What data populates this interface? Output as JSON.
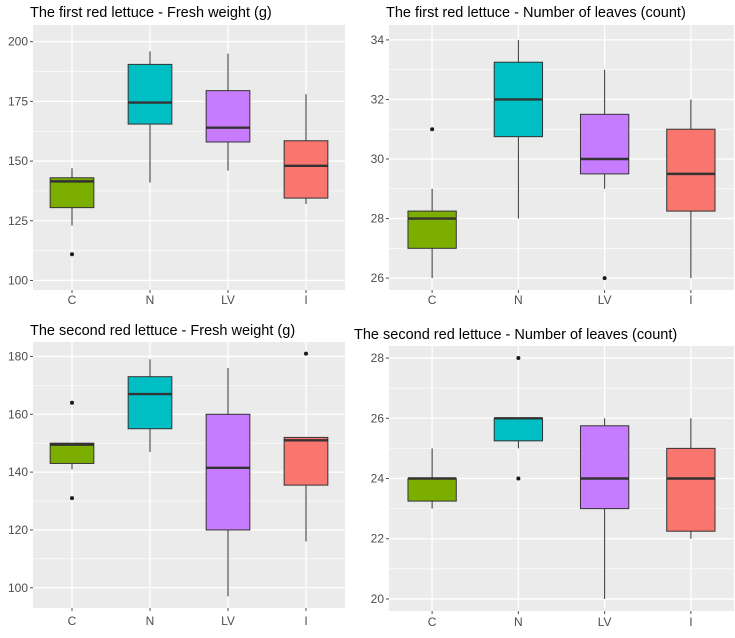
{
  "colors": {
    "panel_bg": "#ebebeb",
    "grid": "#ffffff",
    "median": "#333333",
    "whisker": "#333333",
    "box_stroke": "#333333",
    "groups": {
      "C": "#7cae00",
      "N": "#00bfc4",
      "LV": "#c77cff",
      "I": "#f8766d"
    }
  },
  "chart_data": [
    {
      "type": "box",
      "title": "The first red lettuce - Fresh weight (g)",
      "categories": [
        "C",
        "N",
        "LV",
        "I"
      ],
      "ylim": [
        96,
        207
      ],
      "yticks": [
        100,
        125,
        150,
        175,
        200
      ],
      "minor_yticks": [
        112.5,
        137.5,
        162.5,
        187.5
      ],
      "boxes": [
        {
          "cat": "C",
          "min": 123,
          "q1": 130.5,
          "median": 141.5,
          "q3": 143,
          "max": 147,
          "outliers": [
            111
          ]
        },
        {
          "cat": "N",
          "min": 141,
          "q1": 165.5,
          "median": 174.5,
          "q3": 190.5,
          "max": 196,
          "outliers": []
        },
        {
          "cat": "LV",
          "min": 146,
          "q1": 158,
          "median": 164,
          "q3": 179.5,
          "max": 195,
          "outliers": []
        },
        {
          "cat": "I",
          "min": 132,
          "q1": 134.5,
          "median": 148,
          "q3": 158.5,
          "max": 178,
          "outliers": []
        }
      ]
    },
    {
      "type": "box",
      "title": "The first red lettuce - Number of leaves (count)",
      "categories": [
        "C",
        "N",
        "LV",
        "I"
      ],
      "ylim": [
        25.6,
        34.5
      ],
      "yticks": [
        26,
        28,
        30,
        32,
        34
      ],
      "minor_yticks": [
        27,
        29,
        31,
        33
      ],
      "boxes": [
        {
          "cat": "C",
          "min": 26,
          "q1": 27,
          "median": 28,
          "q3": 28.25,
          "max": 29,
          "outliers": [
            31
          ]
        },
        {
          "cat": "N",
          "min": 28,
          "q1": 30.75,
          "median": 32,
          "q3": 33.25,
          "max": 34,
          "outliers": []
        },
        {
          "cat": "LV",
          "min": 29,
          "q1": 29.5,
          "median": 30,
          "q3": 31.5,
          "max": 33,
          "outliers": [
            26
          ]
        },
        {
          "cat": "I",
          "min": 26,
          "q1": 28.25,
          "median": 29.5,
          "q3": 31,
          "max": 32,
          "outliers": []
        }
      ]
    },
    {
      "type": "box",
      "title": "The second red lettuce - Fresh weight (g)",
      "categories": [
        "C",
        "N",
        "LV",
        "I"
      ],
      "ylim": [
        93,
        185
      ],
      "yticks": [
        100,
        120,
        140,
        160,
        180
      ],
      "minor_yticks": [
        110,
        130,
        150,
        170
      ],
      "boxes": [
        {
          "cat": "C",
          "min": 141,
          "q1": 143,
          "median": 149.5,
          "q3": 150,
          "max": 150,
          "outliers": [
            164,
            131
          ]
        },
        {
          "cat": "N",
          "min": 147,
          "q1": 155,
          "median": 167,
          "q3": 173,
          "max": 179,
          "outliers": []
        },
        {
          "cat": "LV",
          "min": 97,
          "q1": 120,
          "median": 141.5,
          "q3": 160,
          "max": 176,
          "outliers": []
        },
        {
          "cat": "I",
          "min": 116,
          "q1": 135.5,
          "median": 151,
          "q3": 152,
          "max": 152,
          "outliers": [
            181
          ]
        }
      ]
    },
    {
      "type": "box",
      "title": "The second red lettuce - Number of leaves (count)",
      "categories": [
        "C",
        "N",
        "LV",
        "I"
      ],
      "ylim": [
        19.6,
        28.4
      ],
      "yticks": [
        20,
        22,
        24,
        26,
        28
      ],
      "minor_yticks": [
        21,
        23,
        25,
        27
      ],
      "boxes": [
        {
          "cat": "C",
          "min": 23,
          "q1": 23.25,
          "median": 24,
          "q3": 24,
          "max": 25,
          "outliers": []
        },
        {
          "cat": "N",
          "min": 25,
          "q1": 25.25,
          "median": 26,
          "q3": 26,
          "max": 26,
          "outliers": [
            28,
            24
          ]
        },
        {
          "cat": "LV",
          "min": 20,
          "q1": 23,
          "median": 24,
          "q3": 25.75,
          "max": 26,
          "outliers": []
        },
        {
          "cat": "I",
          "min": 22,
          "q1": 22.25,
          "median": 24,
          "q3": 25,
          "max": 26,
          "outliers": []
        }
      ]
    }
  ]
}
